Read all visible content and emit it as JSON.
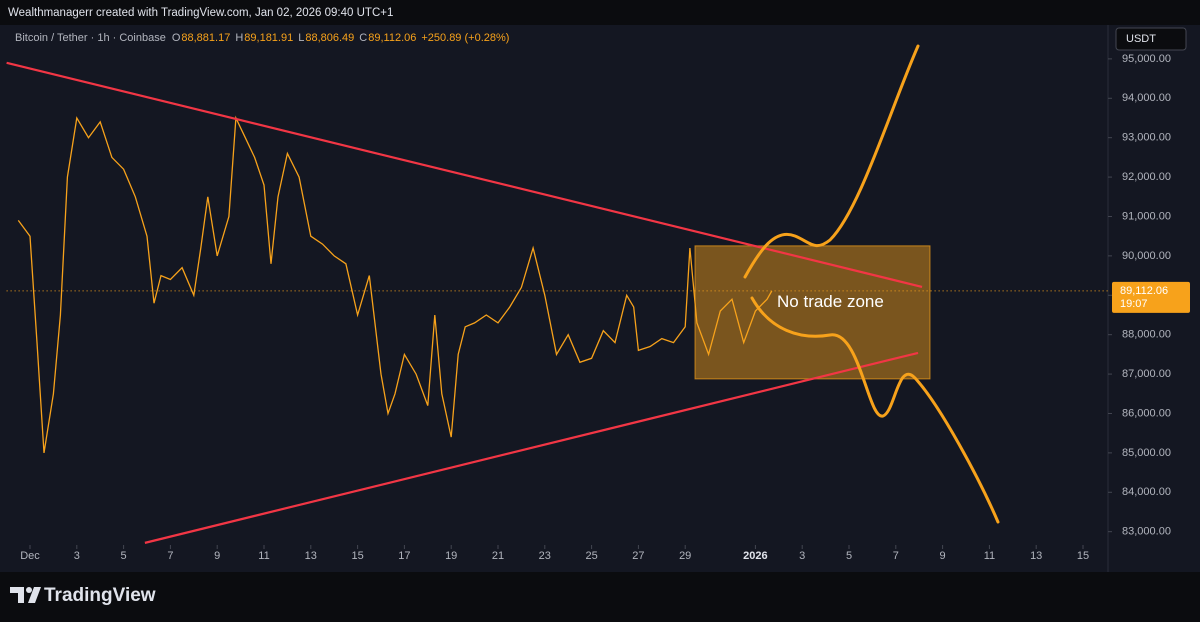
{
  "chart_data": {
    "type": "line",
    "header": "Wealthmanagerr created with TradingView.com, Jan 02, 2026 09:40 UTC+1",
    "symbol": "Bitcoin / Tether · 1h · Coinbase",
    "ohlc": [
      [
        "O",
        "88,881.17"
      ],
      [
        "H",
        "89,181.91"
      ],
      [
        "L",
        "88,806.49"
      ],
      [
        "C",
        "89,112.06"
      ]
    ],
    "change": "+250.89 (+0.28%)",
    "currency": "USDT",
    "color": "#f7a21b",
    "x": [
      0.5,
      1.0,
      1.3,
      1.6,
      2.0,
      2.3,
      2.6,
      3.0,
      3.5,
      4.0,
      4.5,
      5.0,
      5.5,
      6.0,
      6.3,
      6.6,
      7.0,
      7.5,
      8.0,
      8.3,
      8.6,
      9.0,
      9.5,
      9.8,
      10.2,
      10.6,
      11.0,
      11.3,
      11.6,
      12.0,
      12.5,
      13.0,
      13.5,
      14.0,
      14.5,
      15.0,
      15.5,
      16.0,
      16.3,
      16.6,
      17.0,
      17.5,
      18.0,
      18.3,
      18.6,
      19.0,
      19.3,
      19.6,
      20.0,
      20.5,
      21.0,
      21.5,
      22.0,
      22.5,
      23.0,
      23.5,
      24.0,
      24.5,
      25.0,
      25.5,
      26.0,
      26.5,
      26.8,
      27.0,
      27.5,
      28.0,
      28.5,
      29.0,
      29.2,
      29.5,
      30.0,
      30.5,
      31.0,
      31.5,
      32.0,
      32.5,
      32.7
    ],
    "values": [
      90900,
      90500,
      87800,
      85000,
      86500,
      88500,
      92000,
      93500,
      93000,
      93400,
      92500,
      92200,
      91500,
      90500,
      88800,
      89500,
      89400,
      89700,
      89000,
      90200,
      91500,
      90000,
      91000,
      93500,
      93000,
      92500,
      91800,
      89800,
      91500,
      92600,
      92000,
      90500,
      90300,
      90000,
      89800,
      88500,
      89500,
      87000,
      86000,
      86500,
      87500,
      87000,
      86200,
      88500,
      86500,
      85400,
      87500,
      88200,
      88300,
      88500,
      88300,
      88700,
      89200,
      90200,
      89000,
      87500,
      88000,
      87300,
      87400,
      88100,
      87800,
      89000,
      88700,
      87600,
      87700,
      87900,
      87800,
      88200,
      90200,
      88300,
      87500,
      88600,
      88900,
      87800,
      88600,
      88900,
      89112.06
    ],
    "xlim": [
      0,
      47
    ],
    "ylim": [
      82700,
      95860
    ],
    "xticks": [
      {
        "value": 1,
        "label": "Dec"
      },
      3,
      5,
      7,
      9,
      11,
      13,
      15,
      17,
      19,
      21,
      23,
      25,
      27,
      29,
      {
        "value": 32,
        "label": "2026"
      },
      {
        "value": 34,
        "label": "3"
      },
      {
        "value": 36,
        "label": "5"
      },
      {
        "value": 38,
        "label": "7"
      },
      {
        "value": 40,
        "label": "9"
      },
      {
        "value": 42,
        "label": "11"
      },
      {
        "value": 44,
        "label": "13"
      },
      {
        "value": 46,
        "label": "15"
      }
    ],
    "yticks": [
      {
        "value": 83000,
        "label": "83,000.00"
      },
      {
        "value": 84000,
        "label": "84,000.00"
      },
      {
        "value": 85000,
        "label": "85,000.00"
      },
      {
        "value": 86000,
        "label": "86,000.00"
      },
      {
        "value": 87000,
        "label": "87,000.00"
      },
      {
        "value": 88000,
        "label": "88,000.00"
      },
      {
        "value": 89000,
        "label": "89,000.00"
      },
      {
        "value": 90000,
        "label": "90,000.00"
      },
      {
        "value": 91000,
        "label": "91,000.00"
      },
      {
        "value": 92000,
        "label": "92,000.00"
      },
      {
        "value": 93000,
        "label": "93,000.00"
      },
      {
        "value": 94000,
        "label": "94,000.00"
      },
      {
        "value": 95000,
        "label": "95,000.00"
      }
    ],
    "last_price": {
      "value": 89112.06,
      "label": "89,112.06"
    },
    "countdown": "19:07",
    "trendlines": [
      {
        "x": [
          0,
          39.12
        ],
        "values": [
          94900,
          89213
        ],
        "color": "#f23645"
      },
      {
        "x": [
          5.91,
          38.95
        ],
        "values": [
          82716,
          87538
        ],
        "color": "#f23645"
      }
    ],
    "zone": {
      "x": [
        29.42,
        39.46
      ],
      "values": [
        90254,
        86878
      ],
      "label": "No trade zone"
    },
    "brand": "TradingView"
  }
}
